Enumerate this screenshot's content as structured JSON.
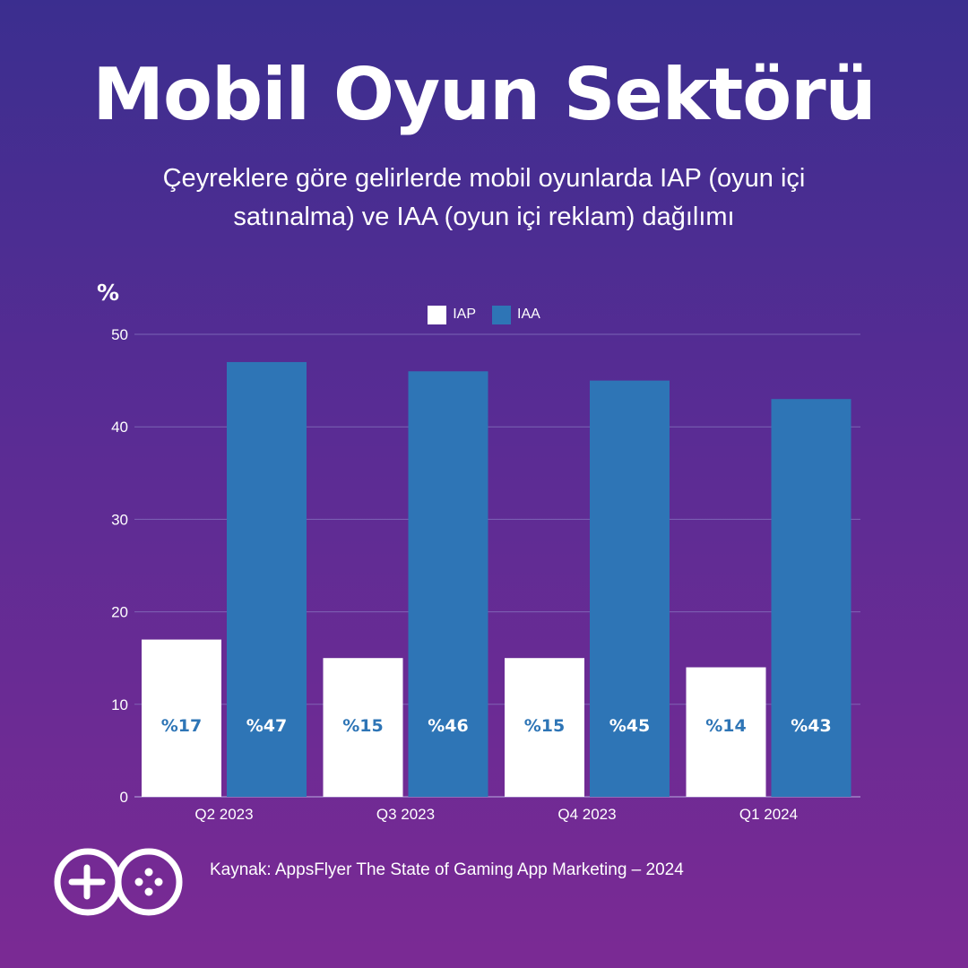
{
  "header": {
    "title": "Mobil Oyun Sektörü",
    "subtitle": "Çeyreklere göre gelirlerde mobil oyunlarda IAP (oyun içi satınalma) ve IAA (oyun içi reklam) dağılımı",
    "unit": "%"
  },
  "legend": {
    "iap": "IAP",
    "iaa": "IAA"
  },
  "colors": {
    "iap": "#ffffff",
    "iaa": "#2e75b6",
    "label_on_iap": "#2e75b6",
    "label_on_iaa": "#ffffff",
    "grid": "#8a7cc4"
  },
  "chart_data": {
    "type": "bar",
    "title": "Çeyreklere göre gelirlerde mobil oyunlarda IAP (oyun içi satınalma) ve IAA (oyun içi reklam) dağılımı",
    "xlabel": "",
    "ylabel": "%",
    "ylim": [
      0,
      50
    ],
    "yticks": [
      0,
      10,
      20,
      30,
      40,
      50
    ],
    "categories": [
      "Q2 2023",
      "Q3 2023",
      "Q4 2023",
      "Q1 2024"
    ],
    "series": [
      {
        "name": "IAP",
        "values": [
          17,
          15,
          15,
          14
        ],
        "labels": [
          "%17",
          "%15",
          "%15",
          "%14"
        ]
      },
      {
        "name": "IAA",
        "values": [
          47,
          46,
          45,
          43
        ],
        "labels": [
          "%47",
          "%46",
          "%45",
          "%43"
        ]
      }
    ],
    "legend_position": "top-center",
    "grid": true
  },
  "footer": {
    "logo": "go-gamepad-logo",
    "source": "Kaynak: AppsFlyer The State of Gaming App Marketing – 2024"
  }
}
